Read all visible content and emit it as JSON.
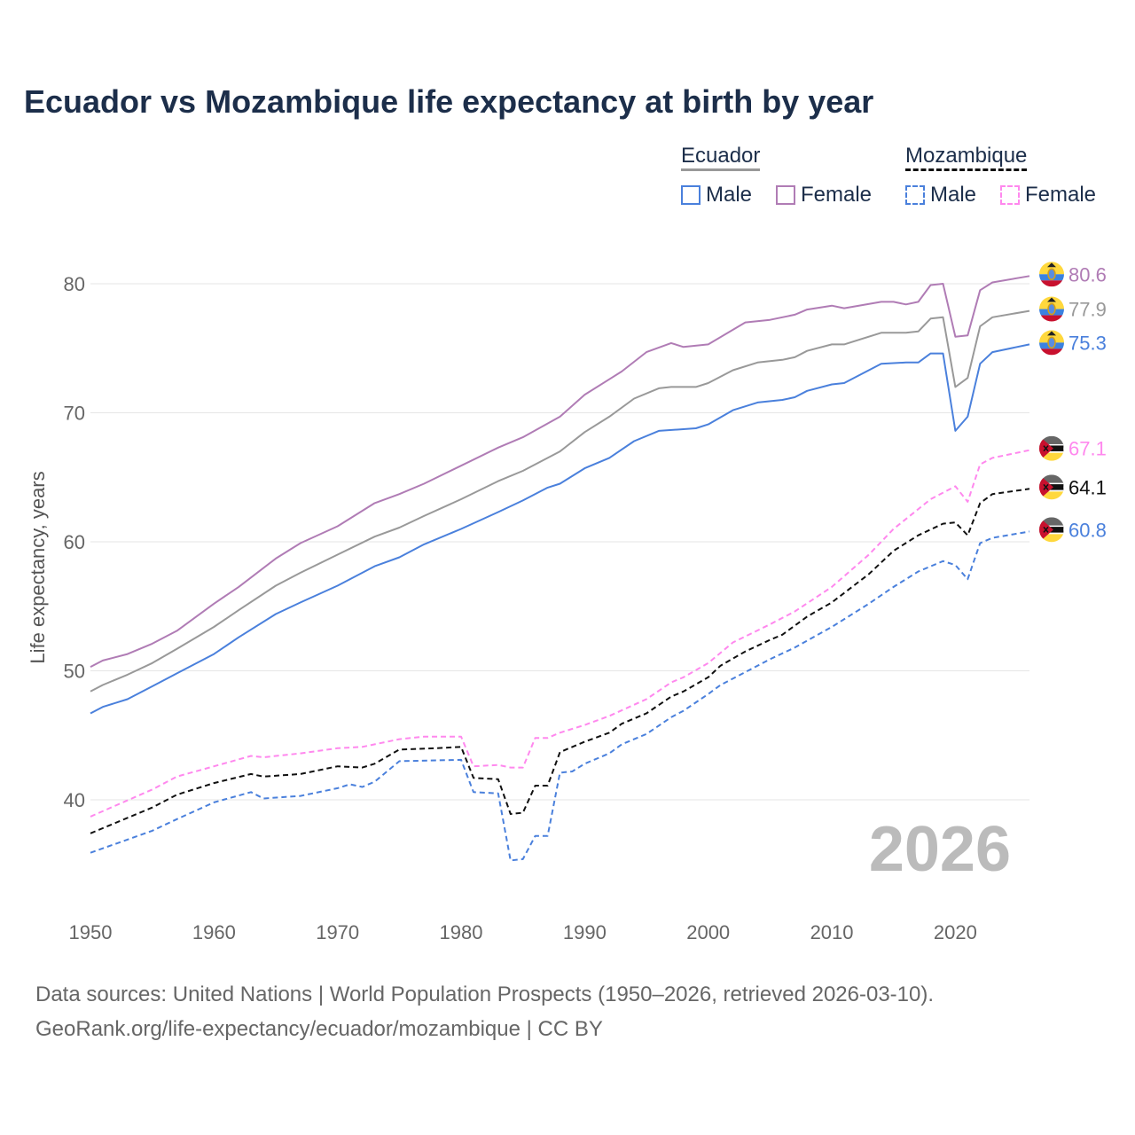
{
  "chart_data": {
    "type": "line",
    "title": "Ecuador vs Mozambique life expectancy at birth by year",
    "xlabel": "",
    "ylabel": "Life expectancy, years",
    "xlim": [
      1950,
      2026
    ],
    "ylim": [
      33,
      83
    ],
    "xticks": [
      1950,
      1960,
      1970,
      1980,
      1990,
      2000,
      2010,
      2020
    ],
    "yticks": [
      40,
      50,
      60,
      70,
      80
    ],
    "grid": true,
    "year_annotation": "2026",
    "legend": {
      "placement": "top-right",
      "groups": [
        {
          "country": "Ecuador",
          "items": [
            "Male",
            "Female"
          ]
        },
        {
          "country": "Mozambique",
          "items": [
            "Male",
            "Female"
          ]
        }
      ]
    },
    "series": [
      {
        "name": "Ecuador Female",
        "country": "Ecuador",
        "flag": "ecuador",
        "color": "#b07cb5",
        "dashed": false,
        "end_label": "80.6",
        "x": [
          1950,
          1951,
          1953,
          1955,
          1957,
          1960,
          1962,
          1965,
          1967,
          1970,
          1973,
          1975,
          1977,
          1980,
          1983,
          1985,
          1988,
          1990,
          1992,
          1993,
          1995,
          1997,
          1998,
          2000,
          2003,
          2005,
          2007,
          2008,
          2010,
          2011,
          2014,
          2015,
          2016,
          2017,
          2018,
          2019,
          2020,
          2021,
          2022,
          2023,
          2026
        ],
        "y": [
          50.3,
          50.8,
          51.3,
          52.1,
          53.1,
          55.2,
          56.5,
          58.7,
          59.9,
          61.2,
          63.0,
          63.7,
          64.5,
          65.9,
          67.3,
          68.1,
          69.7,
          71.4,
          72.6,
          73.2,
          74.7,
          75.4,
          75.1,
          75.3,
          77.0,
          77.2,
          77.6,
          78.0,
          78.3,
          78.1,
          78.6,
          78.6,
          78.4,
          78.6,
          79.9,
          80.0,
          75.9,
          76.0,
          79.5,
          80.1,
          80.6
        ]
      },
      {
        "name": "Ecuador Both",
        "country": "Ecuador",
        "flag": "ecuador",
        "color": "#999999",
        "dashed": false,
        "end_label": "77.9",
        "x": [
          1950,
          1951,
          1953,
          1955,
          1957,
          1960,
          1962,
          1965,
          1967,
          1970,
          1973,
          1975,
          1977,
          1980,
          1983,
          1985,
          1988,
          1990,
          1992,
          1994,
          1996,
          1997,
          1999,
          2000,
          2002,
          2004,
          2006,
          2007,
          2008,
          2010,
          2011,
          2014,
          2016,
          2017,
          2018,
          2019,
          2020,
          2021,
          2022,
          2023,
          2026
        ],
        "y": [
          48.4,
          48.9,
          49.7,
          50.6,
          51.7,
          53.4,
          54.7,
          56.6,
          57.6,
          59.0,
          60.4,
          61.1,
          62.0,
          63.3,
          64.7,
          65.5,
          67.0,
          68.5,
          69.7,
          71.1,
          71.9,
          72.0,
          72.0,
          72.3,
          73.3,
          73.9,
          74.1,
          74.3,
          74.8,
          75.3,
          75.3,
          76.2,
          76.2,
          76.3,
          77.3,
          77.4,
          72.0,
          72.7,
          76.7,
          77.4,
          77.9
        ]
      },
      {
        "name": "Ecuador Male",
        "country": "Ecuador",
        "flag": "ecuador",
        "color": "#4a80dc",
        "dashed": false,
        "end_label": "75.3",
        "x": [
          1950,
          1951,
          1953,
          1955,
          1957,
          1960,
          1962,
          1965,
          1967,
          1970,
          1973,
          1975,
          1977,
          1980,
          1983,
          1985,
          1987,
          1988,
          1990,
          1992,
          1994,
          1996,
          1999,
          2000,
          2002,
          2004,
          2006,
          2007,
          2008,
          2010,
          2011,
          2014,
          2016,
          2017,
          2018,
          2019,
          2020,
          2021,
          2022,
          2023,
          2026
        ],
        "y": [
          46.7,
          47.2,
          47.8,
          48.8,
          49.8,
          51.3,
          52.6,
          54.4,
          55.3,
          56.6,
          58.1,
          58.8,
          59.8,
          61.0,
          62.3,
          63.2,
          64.2,
          64.5,
          65.7,
          66.5,
          67.8,
          68.6,
          68.8,
          69.1,
          70.2,
          70.8,
          71.0,
          71.2,
          71.7,
          72.2,
          72.3,
          73.8,
          73.9,
          73.9,
          74.6,
          74.6,
          68.6,
          69.7,
          73.8,
          74.7,
          75.3
        ]
      },
      {
        "name": "Mozambique Female",
        "country": "Mozambique",
        "flag": "mozambique",
        "color": "#ff88ee",
        "dashed": true,
        "end_label": "67.1",
        "x": [
          1950,
          1955,
          1957,
          1960,
          1963,
          1964,
          1967,
          1970,
          1972,
          1975,
          1977,
          1980,
          1981,
          1983,
          1984,
          1985,
          1986,
          1987,
          1988,
          1990,
          1992,
          1995,
          1997,
          1998,
          2000,
          2002,
          2005,
          2007,
          2010,
          2013,
          2015,
          2018,
          2020,
          2021,
          2022,
          2023,
          2026
        ],
        "y": [
          38.7,
          40.8,
          41.8,
          42.6,
          43.4,
          43.3,
          43.6,
          44.0,
          44.1,
          44.7,
          44.9,
          44.9,
          42.6,
          42.7,
          42.5,
          42.5,
          44.8,
          44.8,
          45.2,
          45.8,
          46.5,
          47.8,
          49.1,
          49.5,
          50.6,
          52.2,
          53.6,
          54.6,
          56.5,
          59.0,
          61.0,
          63.3,
          64.3,
          63.1,
          66.0,
          66.5,
          67.1
        ]
      },
      {
        "name": "Mozambique Both",
        "country": "Mozambique",
        "flag": "mozambique",
        "color": "#111111",
        "dashed": true,
        "end_label": "64.1",
        "x": [
          1950,
          1955,
          1957,
          1960,
          1963,
          1964,
          1967,
          1970,
          1972,
          1973,
          1975,
          1978,
          1980,
          1981,
          1983,
          1984,
          1985,
          1986,
          1987,
          1988,
          1990,
          1992,
          1993,
          1995,
          1997,
          1998,
          2000,
          2001,
          2003,
          2005,
          2006,
          2008,
          2010,
          2013,
          2015,
          2017,
          2019,
          2020,
          2021,
          2022,
          2023,
          2026
        ],
        "y": [
          37.4,
          39.4,
          40.4,
          41.3,
          42.0,
          41.8,
          42.0,
          42.6,
          42.5,
          42.8,
          43.9,
          44.0,
          44.1,
          41.7,
          41.6,
          38.9,
          39.0,
          41.1,
          41.1,
          43.7,
          44.5,
          45.2,
          45.9,
          46.7,
          48.0,
          48.4,
          49.5,
          50.4,
          51.5,
          52.4,
          52.8,
          54.2,
          55.3,
          57.5,
          59.3,
          60.5,
          61.4,
          61.5,
          60.5,
          63.0,
          63.7,
          64.1
        ]
      },
      {
        "name": "Mozambique Male",
        "country": "Mozambique",
        "flag": "mozambique",
        "color": "#4a80dc",
        "dashed": true,
        "end_label": "60.8",
        "x": [
          1950,
          1955,
          1957,
          1960,
          1963,
          1964,
          1967,
          1970,
          1971,
          1972,
          1973,
          1975,
          1980,
          1981,
          1983,
          1984,
          1985,
          1986,
          1987,
          1988,
          1989,
          1990,
          1992,
          1993,
          1995,
          1997,
          1998,
          2000,
          2001,
          2003,
          2005,
          2007,
          2010,
          2013,
          2015,
          2017,
          2019,
          2020,
          2021,
          2022,
          2023,
          2026
        ],
        "y": [
          35.9,
          37.6,
          38.5,
          39.8,
          40.6,
          40.1,
          40.3,
          40.9,
          41.2,
          41.0,
          41.4,
          43.0,
          43.1,
          40.6,
          40.5,
          35.3,
          35.4,
          37.2,
          37.2,
          42.1,
          42.2,
          42.8,
          43.6,
          44.3,
          45.1,
          46.4,
          46.9,
          48.2,
          48.9,
          49.9,
          50.9,
          51.8,
          53.4,
          55.2,
          56.5,
          57.7,
          58.5,
          58.2,
          57.1,
          59.9,
          60.3,
          60.8
        ]
      }
    ]
  },
  "source_lines": [
    "Data sources: United Nations | World Population Prospects (1950–2026, retrieved 2026-03-10).",
    "GeoRank.org/life-expectancy/ecuador/mozambique | CC BY"
  ]
}
